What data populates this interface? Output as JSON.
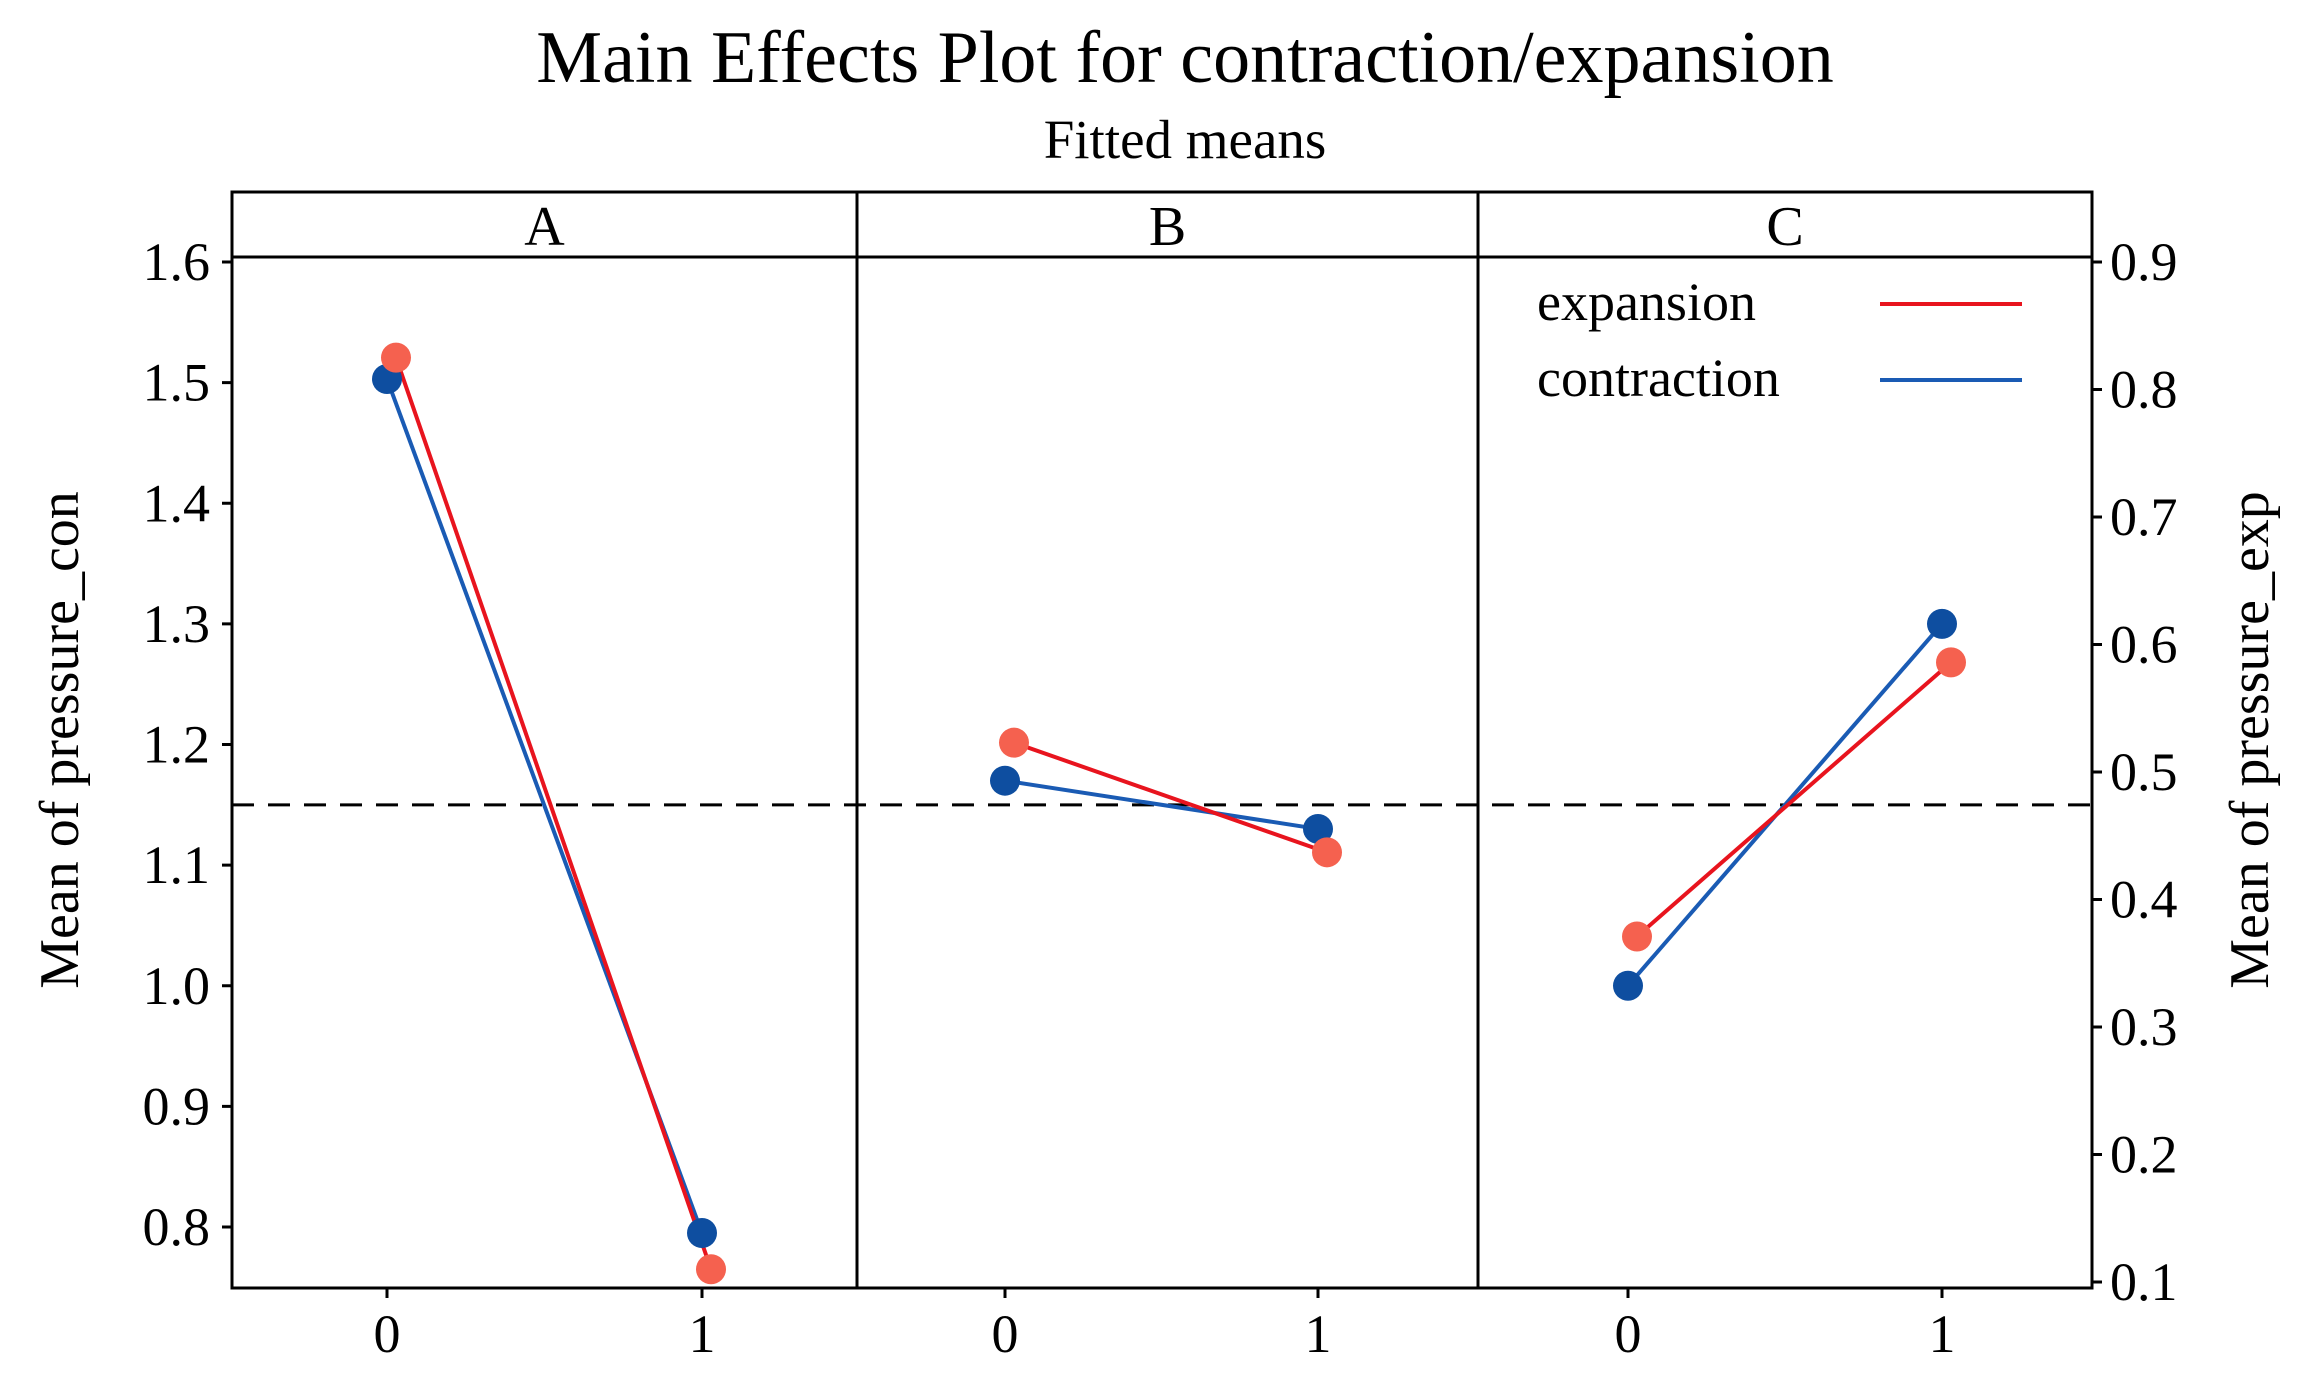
{
  "chart_data": {
    "type": "line",
    "title": "Main Effects Plot for contraction/expansion",
    "subtitle": "Fitted means",
    "panels": [
      "A",
      "B",
      "C"
    ],
    "x_categories": [
      "0",
      "1"
    ],
    "left_axis": {
      "label": "Mean of pressure_con",
      "range": [
        0.75,
        1.6
      ],
      "ticks": [
        "0.8",
        "0.9",
        "1.0",
        "1.1",
        "1.2",
        "1.3",
        "1.4",
        "1.5",
        "1.6"
      ]
    },
    "right_axis": {
      "label": "Mean of pressure_exp",
      "range": [
        0.1,
        0.9
      ],
      "ticks": [
        "0.1",
        "0.2",
        "0.3",
        "0.4",
        "0.5",
        "0.6",
        "0.7",
        "0.8",
        "0.9"
      ]
    },
    "reference_line": {
      "axis": "left",
      "value": 1.15,
      "style": "dashed"
    },
    "legend": {
      "position": "top-right",
      "entries": [
        "expansion",
        "contraction"
      ]
    },
    "series": [
      {
        "name": "expansion",
        "axis": "right",
        "color": "#e8141e",
        "marker_color": "#f5614f",
        "values": {
          "A": [
            0.825,
            0.11
          ],
          "B": [
            0.523,
            0.437
          ],
          "C": [
            0.371,
            0.586
          ]
        }
      },
      {
        "name": "contraction",
        "axis": "left",
        "color": "#1a5bb4",
        "marker_color": "#0e4ea0",
        "values": {
          "A": [
            1.503,
            0.795
          ],
          "B": [
            1.17,
            1.13
          ],
          "C": [
            1.0,
            1.3
          ]
        }
      }
    ]
  }
}
